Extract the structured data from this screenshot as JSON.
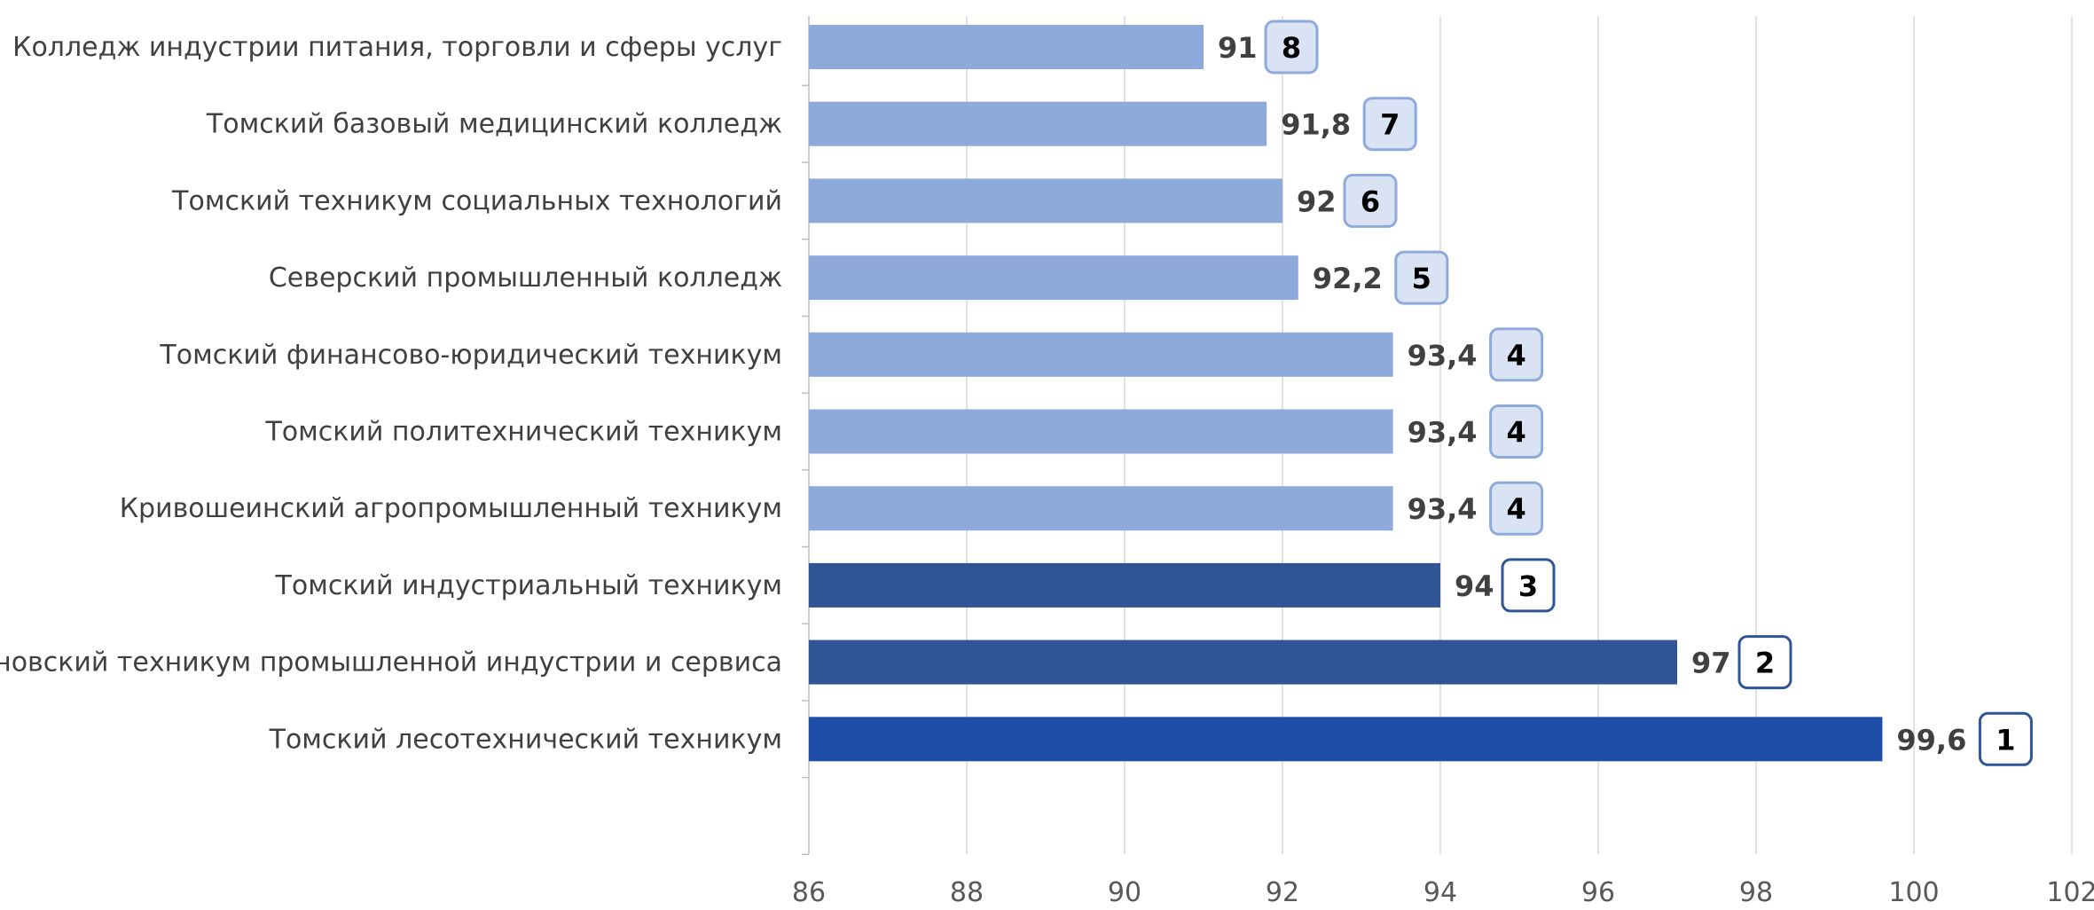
{
  "chart_data": {
    "type": "bar",
    "orientation": "horizontal",
    "title": "",
    "xlabel": "",
    "ylabel": "",
    "xlim": [
      86,
      102
    ],
    "x_ticks": [
      "86",
      "88",
      "90",
      "92",
      "94",
      "96",
      "98",
      "100",
      "102"
    ],
    "grid": "vertical",
    "legend": "none",
    "categories": [
      "Колледж индустрии питания, торговли и сферы услуг",
      "Томский базовый медицинский колледж",
      "Томский техникум социальных технологий",
      "Северский промышленный колледж",
      "Томский финансово-юридический техникум",
      "Томский политехнический техникум",
      "Кривошеинский агропромышленный техникум",
      "Томский индустриальный техникум",
      "Асиновский техникум промышленной индустрии и сервиса",
      "Томский лесотехнический техникум"
    ],
    "values": [
      91,
      91.8,
      92,
      92.2,
      93.4,
      93.4,
      93.4,
      94,
      97,
      99.6
    ],
    "value_labels": [
      "91",
      "91,8",
      "92",
      "92,2",
      "93,4",
      "93,4",
      "93,4",
      "94",
      "97",
      "99,6"
    ],
    "ranks": [
      "8",
      "7",
      "6",
      "5",
      "4",
      "4",
      "4",
      "3",
      "2",
      "1"
    ],
    "colors": {
      "light": "#8eaadb",
      "medium": "#2f5597",
      "dark": "#1f4ea8",
      "badge_light_fill": "#dae3f3",
      "badge_light_stroke": "#8eaadb",
      "badge_dark_stroke": "#2f5597",
      "grid": "#d9d9d9",
      "axis": "#bfbfbf"
    },
    "bar_color_groups": [
      "light",
      "light",
      "light",
      "light",
      "light",
      "light",
      "light",
      "medium",
      "medium",
      "dark"
    ]
  }
}
